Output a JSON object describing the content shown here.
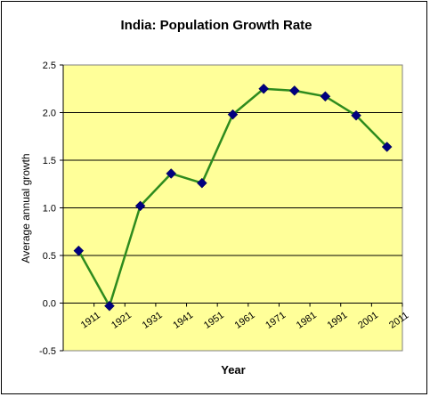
{
  "chart_data": {
    "type": "line",
    "title": "India: Population Growth Rate",
    "xlabel": "Year",
    "ylabel": "Average annual growth",
    "ylim": [
      -0.5,
      2.5
    ],
    "yticks": [
      "-0.5",
      "0.0",
      "0.5",
      "1.0",
      "1.5",
      "2.0",
      "2.5"
    ],
    "categories": [
      "1911",
      "1921",
      "1931",
      "1941",
      "1951",
      "1961",
      "1971",
      "1981",
      "1991",
      "2001",
      "2011"
    ],
    "values": [
      0.55,
      -0.03,
      1.02,
      1.36,
      1.26,
      1.98,
      2.25,
      2.23,
      2.17,
      1.97,
      1.64
    ],
    "grid": "horizontal",
    "plot_background": "#FFFF99",
    "line_color": "#2E8B1E",
    "marker_color": "#000080",
    "marker": "diamond"
  }
}
